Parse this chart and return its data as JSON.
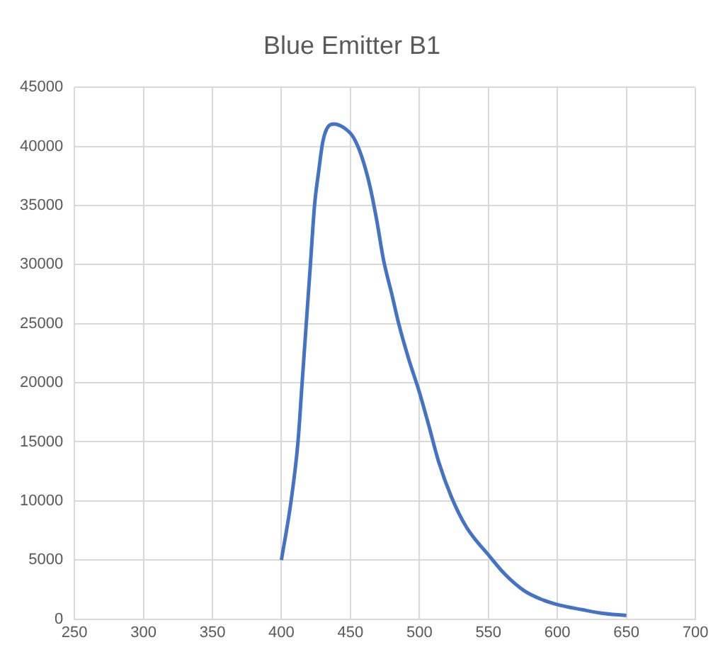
{
  "chart_data": {
    "type": "line",
    "title": "Blue Emitter B1",
    "series": [
      {
        "color": "#4472c4",
        "x": [
          400,
          407,
          412,
          415,
          418,
          421,
          424,
          427,
          430,
          434,
          438,
          445,
          452,
          458,
          464,
          469,
          474,
          480,
          485,
          492,
          500,
          507,
          514,
          523,
          534,
          551,
          562,
          576,
          590,
          601,
          618,
          632,
          650
        ],
        "values": [
          5000,
          10000,
          15000,
          20000,
          25000,
          30000,
          35000,
          37900,
          40400,
          41700,
          41900,
          41600,
          40800,
          39200,
          36700,
          33800,
          30400,
          27500,
          25000,
          22100,
          19200,
          16300,
          13300,
          10400,
          7800,
          5300,
          3800,
          2400,
          1600,
          1200,
          800,
          500,
          300
        ]
      }
    ],
    "xlim": [
      250,
      700
    ],
    "xticks": [
      250,
      300,
      350,
      400,
      450,
      500,
      550,
      600,
      650,
      700
    ],
    "ylim": [
      0,
      45000
    ],
    "yticks": [
      0,
      5000,
      10000,
      15000,
      20000,
      25000,
      30000,
      35000,
      40000,
      45000
    ],
    "grid": true,
    "legend": false,
    "marker": "none",
    "line_style": "solid"
  }
}
